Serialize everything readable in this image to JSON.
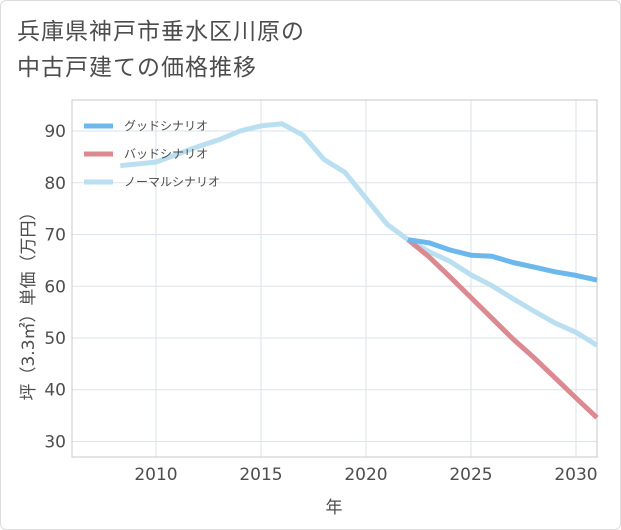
{
  "title_lines": [
    "兵庫県神戸市垂水区川原の",
    "中古戸建ての価格推移"
  ],
  "chart_data": {
    "type": "line",
    "xlabel": "年",
    "ylabel": "坪（3.3㎡）単価（万円）",
    "xlim": [
      2006,
      2031
    ],
    "ylim": [
      27,
      96
    ],
    "xticks": [
      2010,
      2015,
      2020,
      2025,
      2030
    ],
    "yticks": [
      30,
      40,
      50,
      60,
      70,
      80,
      90
    ],
    "grid": true,
    "legend_position": "top-left",
    "series": [
      {
        "name": "グッドシナリオ",
        "color": "#6cb8ed",
        "x": [
          2022,
          2023,
          2024,
          2025,
          2026,
          2027,
          2028,
          2029,
          2030,
          2031
        ],
        "y": [
          69.0,
          68.4,
          67.0,
          66.0,
          65.8,
          64.6,
          63.7,
          62.8,
          62.1,
          61.2
        ]
      },
      {
        "name": "バッドシナリオ",
        "color": "#dc8a91",
        "x": [
          2022,
          2023,
          2024,
          2025,
          2026,
          2027,
          2028,
          2029,
          2030,
          2031
        ],
        "y": [
          69.0,
          65.7,
          61.8,
          57.8,
          53.8,
          49.8,
          46.2,
          42.3,
          38.4,
          34.6
        ]
      },
      {
        "name": "ノーマルシナリオ",
        "color": "#badff0",
        "x": [
          2008.3,
          2009,
          2010,
          2011,
          2012,
          2013,
          2014,
          2015,
          2016,
          2017,
          2018,
          2019,
          2020,
          2021,
          2022,
          2023,
          2024,
          2025,
          2026,
          2027,
          2028,
          2029,
          2030,
          2031
        ],
        "y": [
          83.3,
          83.6,
          84.0,
          85.5,
          87.0,
          88.3,
          90.0,
          91.0,
          91.4,
          89.2,
          84.5,
          82.0,
          77.0,
          72.0,
          69.0,
          66.7,
          64.8,
          62.2,
          60.1,
          57.6,
          55.2,
          52.9,
          51.1,
          48.6
        ]
      }
    ]
  }
}
